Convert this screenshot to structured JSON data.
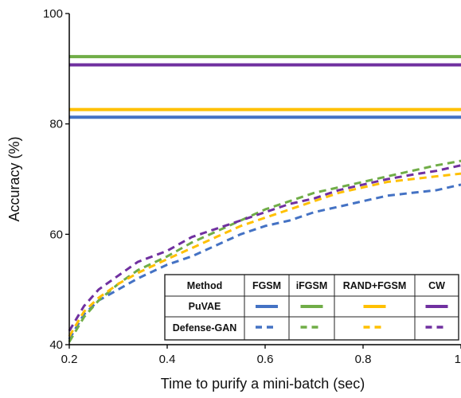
{
  "chart_data": {
    "type": "line",
    "title": "",
    "xlabel": "Time to purify a mini-batch (sec)",
    "ylabel": "Accuracy (%)",
    "xlim": [
      0.2,
      1.0
    ],
    "ylim": [
      40,
      100
    ],
    "xticks": [
      0.2,
      0.4,
      0.6,
      0.8,
      1
    ],
    "xtick_labels": [
      "0.2",
      "0.4",
      "0.6",
      "0.8",
      "1"
    ],
    "yticks": [
      40,
      60,
      80,
      100
    ],
    "ytick_labels": [
      "40",
      "60",
      "80",
      "100"
    ],
    "grid": false,
    "legend": {
      "placement": "bottom-right",
      "header": "Method",
      "columns": [
        "FGSM",
        "iFGSM",
        "RAND+FGSM",
        "CW"
      ],
      "rows": [
        "PuVAE",
        "Defense-GAN"
      ]
    },
    "colors": {
      "FGSM": "#4472c4",
      "iFGSM": "#70ad47",
      "RAND+FGSM": "#ffc000",
      "CW": "#7030a0"
    },
    "series": [
      {
        "method": "PuVAE",
        "attack": "FGSM",
        "style": "solid",
        "x": [
          0.2,
          1.0
        ],
        "y": [
          81.2,
          81.2
        ]
      },
      {
        "method": "PuVAE",
        "attack": "iFGSM",
        "style": "solid",
        "x": [
          0.2,
          1.0
        ],
        "y": [
          92.2,
          92.2
        ]
      },
      {
        "method": "PuVAE",
        "attack": "RAND+FGSM",
        "style": "solid",
        "x": [
          0.2,
          1.0
        ],
        "y": [
          82.6,
          82.6
        ]
      },
      {
        "method": "PuVAE",
        "attack": "CW",
        "style": "solid",
        "x": [
          0.2,
          1.0
        ],
        "y": [
          90.7,
          90.7
        ]
      },
      {
        "method": "Defense-GAN",
        "attack": "FGSM",
        "style": "dashed",
        "x": [
          0.2,
          0.23,
          0.26,
          0.3,
          0.34,
          0.4,
          0.45,
          0.5,
          0.55,
          0.6,
          0.65,
          0.7,
          0.75,
          0.8,
          0.85,
          0.9,
          0.95,
          1.0
        ],
        "y": [
          41.0,
          45.5,
          48.0,
          50.0,
          52.0,
          54.5,
          56.0,
          58.0,
          60.0,
          61.5,
          62.5,
          64.0,
          65.0,
          66.0,
          67.0,
          67.5,
          68.0,
          69.0
        ]
      },
      {
        "method": "Defense-GAN",
        "attack": "iFGSM",
        "style": "dashed",
        "x": [
          0.2,
          0.23,
          0.26,
          0.3,
          0.34,
          0.4,
          0.45,
          0.5,
          0.55,
          0.6,
          0.65,
          0.7,
          0.75,
          0.8,
          0.85,
          0.9,
          0.95,
          1.0
        ],
        "y": [
          40.5,
          45.0,
          48.0,
          51.0,
          53.5,
          56.0,
          58.5,
          60.5,
          62.5,
          64.5,
          66.0,
          67.5,
          68.5,
          69.5,
          70.5,
          71.5,
          72.5,
          73.3
        ]
      },
      {
        "method": "Defense-GAN",
        "attack": "RAND+FGSM",
        "style": "dashed",
        "x": [
          0.2,
          0.23,
          0.26,
          0.3,
          0.34,
          0.4,
          0.45,
          0.5,
          0.55,
          0.6,
          0.65,
          0.7,
          0.75,
          0.8,
          0.85,
          0.9,
          0.95,
          1.0
        ],
        "y": [
          41.5,
          46.0,
          48.5,
          51.0,
          53.0,
          55.5,
          57.5,
          59.5,
          61.5,
          63.0,
          64.5,
          66.0,
          67.5,
          68.5,
          69.5,
          70.0,
          70.5,
          71.0
        ]
      },
      {
        "method": "Defense-GAN",
        "attack": "CW",
        "style": "dashed",
        "x": [
          0.2,
          0.23,
          0.26,
          0.3,
          0.34,
          0.4,
          0.45,
          0.5,
          0.55,
          0.6,
          0.65,
          0.7,
          0.75,
          0.8,
          0.85,
          0.9,
          0.95,
          1.0
        ],
        "y": [
          42.5,
          47.0,
          50.0,
          52.5,
          55.0,
          57.0,
          59.5,
          61.0,
          62.5,
          64.0,
          65.5,
          66.5,
          68.0,
          69.0,
          70.0,
          70.8,
          71.5,
          72.5
        ]
      }
    ]
  }
}
